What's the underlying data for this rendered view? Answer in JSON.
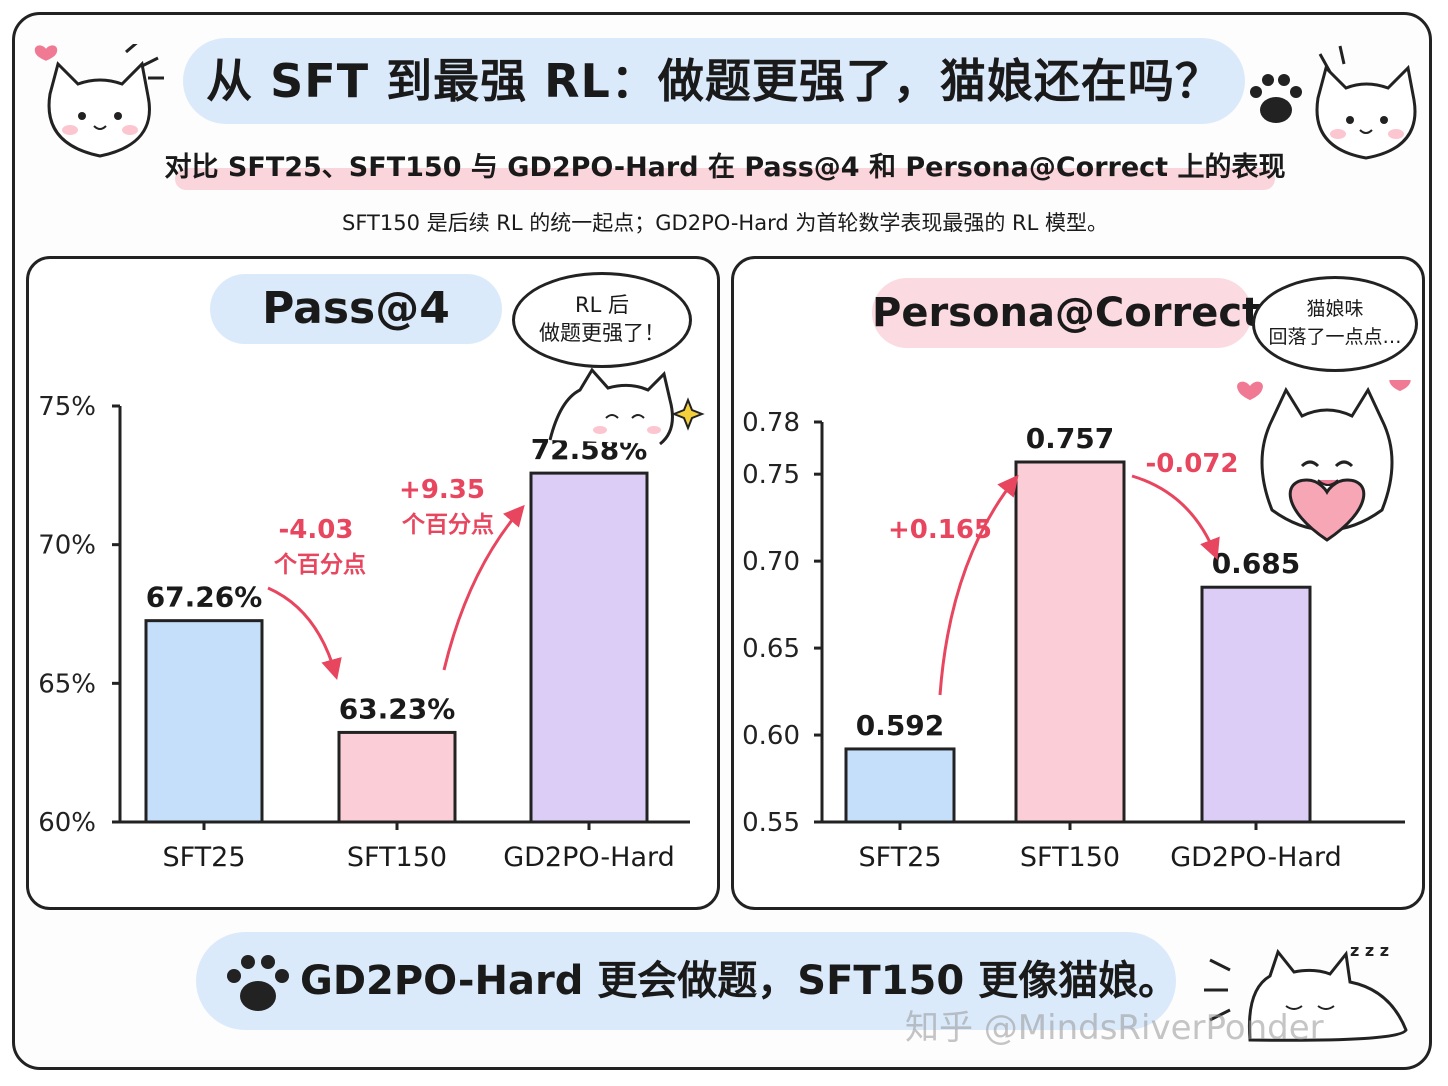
{
  "title": "从 SFT 到最强 RL：做题更强了，猫娘还在吗？",
  "subtitle": "对比 SFT25、SFT150 与 GD2PO-Hard 在 Pass@4 和 Persona@Correct 上的表现",
  "note": "SFT150 是后续 RL 的统一起点；GD2PO-Hard 为首轮数学表现最强的 RL 模型。",
  "footer": "GD2PO-Hard 更会做题，SFT150 更像猫娘。",
  "watermark": "知乎 @MindsRiverPonder",
  "colors": {
    "sft25": "#c5defa",
    "sft150": "#fbcdd6",
    "gd2po": "#dccdf7",
    "arrow": "#e8455f"
  },
  "chart_data": [
    {
      "type": "bar",
      "title": "Pass@4",
      "categories": [
        "SFT25",
        "SFT150",
        "GD2PO-Hard"
      ],
      "values": [
        67.26,
        63.23,
        72.58
      ],
      "value_labels": [
        "67.26%",
        "63.23%",
        "72.58%"
      ],
      "ylim": [
        60,
        75
      ],
      "yticks": [
        60,
        65,
        70,
        75
      ],
      "ytick_labels": [
        "60%",
        "65%",
        "70%",
        "75%"
      ],
      "annotations": [
        {
          "delta": "-4.03",
          "unit": "个百分点"
        },
        {
          "delta": "+9.35",
          "unit": "个百分点"
        }
      ],
      "bubble": [
        "RL 后",
        "做题更强了！"
      ]
    },
    {
      "type": "bar",
      "title": "Persona@Correct",
      "categories": [
        "SFT25",
        "SFT150",
        "GD2PO-Hard"
      ],
      "values": [
        0.592,
        0.757,
        0.685
      ],
      "value_labels": [
        "0.592",
        "0.757",
        "0.685"
      ],
      "ylim": [
        0.55,
        0.78
      ],
      "yticks": [
        0.55,
        0.6,
        0.65,
        0.7,
        0.75,
        0.78
      ],
      "ytick_labels": [
        "0.55",
        "0.60",
        "0.65",
        "0.70",
        "0.75",
        "0.78"
      ],
      "annotations": [
        {
          "delta": "+0.165",
          "unit": ""
        },
        {
          "delta": "-0.072",
          "unit": ""
        }
      ],
      "bubble": [
        "猫娘味",
        "回落了一点点…"
      ]
    }
  ]
}
